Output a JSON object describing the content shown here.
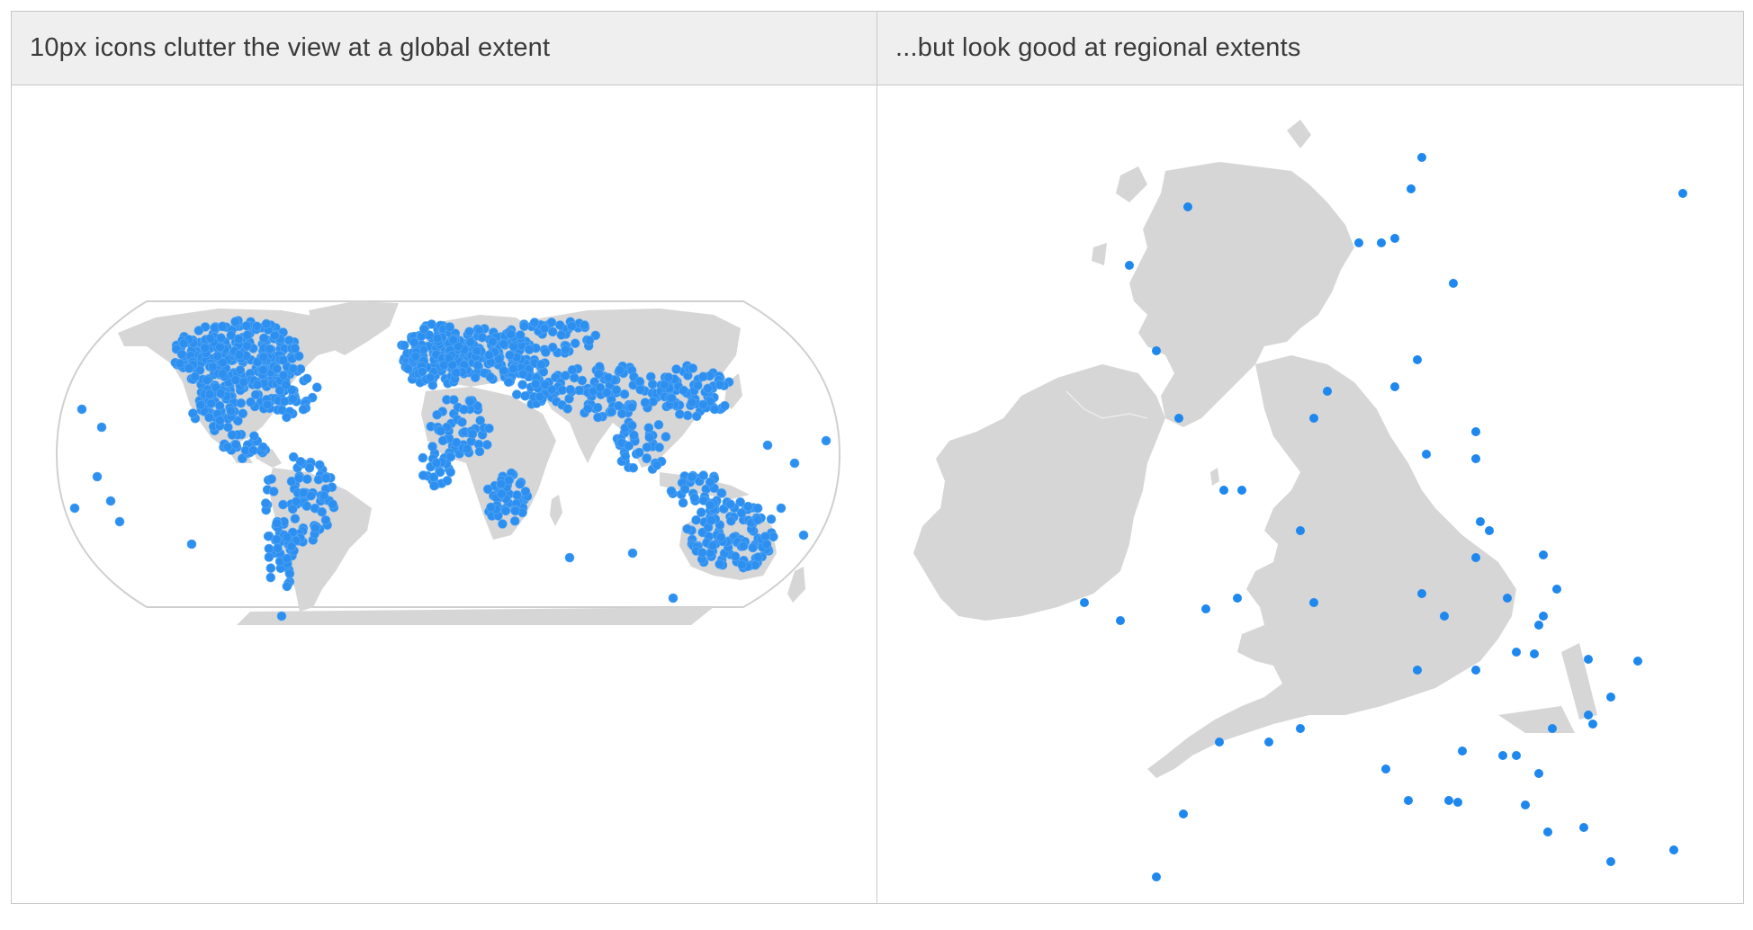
{
  "panels": [
    {
      "id": "global",
      "title": "10px icons clutter the view at a global extent"
    },
    {
      "id": "regional",
      "title": "...but look good at regional extents"
    }
  ],
  "colors": {
    "land": "#d6d6d6",
    "point": "#2d90f0",
    "header_background": "#efefef",
    "border": "#c8c8c8",
    "title_text": "#3a3a3a"
  }
}
